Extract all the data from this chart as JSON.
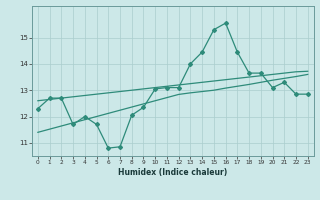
{
  "xlabel": "Humidex (Indice chaleur)",
  "x": [
    0,
    1,
    2,
    3,
    4,
    5,
    6,
    7,
    8,
    9,
    10,
    11,
    12,
    13,
    14,
    15,
    16,
    17,
    18,
    19,
    20,
    21,
    22,
    23
  ],
  "y_main": [
    12.3,
    12.7,
    12.7,
    11.7,
    12.0,
    11.7,
    10.8,
    10.85,
    12.05,
    12.35,
    13.05,
    13.1,
    13.1,
    14.0,
    14.45,
    15.3,
    15.55,
    14.45,
    13.65,
    13.65,
    13.1,
    13.3,
    12.85,
    12.85
  ],
  "y_trend1": [
    12.6,
    12.65,
    12.7,
    12.75,
    12.8,
    12.85,
    12.9,
    12.95,
    13.0,
    13.05,
    13.1,
    13.15,
    13.2,
    13.25,
    13.3,
    13.35,
    13.4,
    13.45,
    13.5,
    13.55,
    13.6,
    13.65,
    13.7,
    13.72
  ],
  "y_trend2": [
    11.4,
    11.52,
    11.64,
    11.76,
    11.88,
    12.0,
    12.12,
    12.24,
    12.36,
    12.48,
    12.6,
    12.72,
    12.84,
    12.9,
    12.95,
    13.0,
    13.08,
    13.15,
    13.22,
    13.3,
    13.38,
    13.45,
    13.52,
    13.6
  ],
  "line_color": "#2e8b7a",
  "bg_color": "#cce8e8",
  "grid_color": "#aacece",
  "ylim": [
    10.5,
    16.2
  ],
  "yticks": [
    11,
    12,
    13,
    14,
    15
  ],
  "xticks": [
    0,
    1,
    2,
    3,
    4,
    5,
    6,
    7,
    8,
    9,
    10,
    11,
    12,
    13,
    14,
    15,
    16,
    17,
    18,
    19,
    20,
    21,
    22,
    23
  ]
}
